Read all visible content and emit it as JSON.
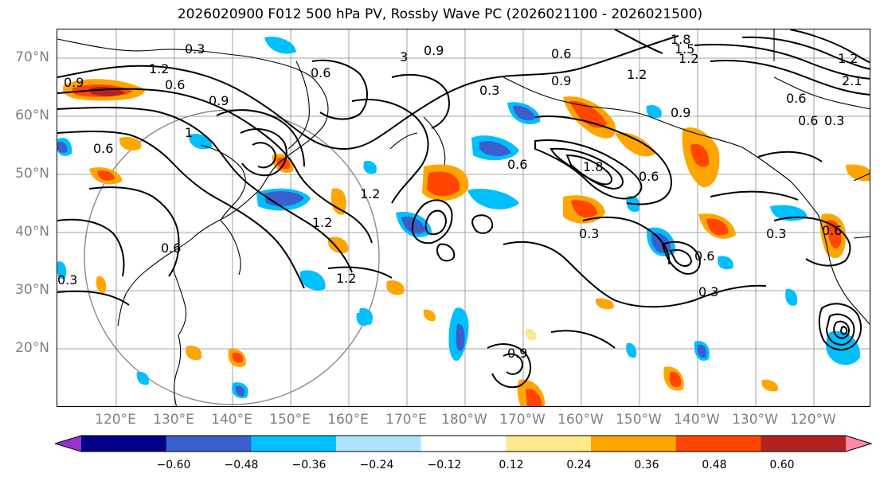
{
  "title": "2026020900 F012 500 hPa PV, Rossby Wave PC (2026021100 - 2026021500)",
  "lat_labels": [
    "70°N",
    "60°N",
    "50°N",
    "40°N",
    "30°N",
    "20°N"
  ],
  "lon_labels": [
    "120°E",
    "130°E",
    "140°E",
    "150°E",
    "160°E",
    "170°E",
    "180°W",
    "170°W",
    "160°W",
    "150°W",
    "140°W",
    "130°W",
    "120°W"
  ],
  "colorbar": {
    "colors": [
      "#9932cc",
      "#00008b",
      "#3a5fcd",
      "#00bfff",
      "#b0e2ff",
      "#ffffff",
      "#ffe98a",
      "#ffa500",
      "#ff4500",
      "#b22222",
      "#ff88aa"
    ],
    "ticks": [
      "−0.60",
      "−0.48",
      "−0.36",
      "−0.24",
      "−0.12",
      "0.12",
      "0.24",
      "0.36",
      "0.48",
      "0.60"
    ]
  },
  "contour_labels": [
    "0.9",
    "1.2",
    "0.3",
    "0.9",
    "0.6",
    "0.6",
    "0.9",
    "1.8",
    "1.5",
    "1.2",
    "2.1",
    "0.9",
    "1.2",
    "0.6",
    "0.3",
    "0.6",
    "1",
    "1.2",
    "1.2",
    "1.2",
    "0.6",
    "0.3",
    "0.6",
    "0.3",
    "0.6",
    "0.3",
    "0.3",
    "0.9",
    "0.6",
    "0.9",
    "0.6",
    "0.6",
    "1.2",
    "0.3",
    "1.8",
    "0.6",
    "3"
  ]
}
